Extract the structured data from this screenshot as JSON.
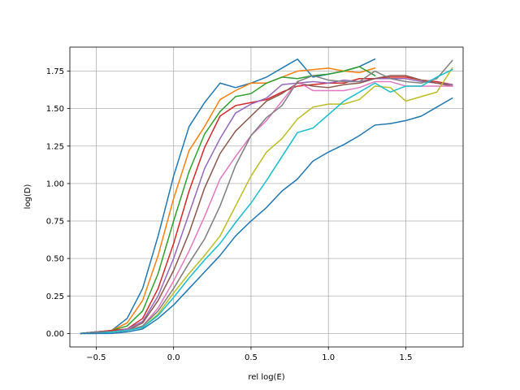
{
  "chart_data": {
    "type": "line",
    "title": "",
    "xlabel": "rel log(E)",
    "ylabel": "log(D)",
    "xlim": [
      -0.67,
      1.87
    ],
    "ylim": [
      -0.09,
      1.91
    ],
    "xticks": [
      -0.5,
      0.0,
      0.5,
      1.0,
      1.5
    ],
    "xtick_labels": [
      "−0.5",
      "0.0",
      "0.5",
      "1.0",
      "1.5"
    ],
    "yticks": [
      0.0,
      0.25,
      0.5,
      0.75,
      1.0,
      1.25,
      1.5,
      1.75
    ],
    "ytick_labels": [
      "0.00",
      "0.25",
      "0.50",
      "0.75",
      "1.00",
      "1.25",
      "1.50",
      "1.75"
    ],
    "grid": true,
    "legend": "none",
    "series": [
      {
        "color": "#1f77b4",
        "x": [
          -0.6,
          -0.5,
          -0.4,
          -0.3,
          -0.2,
          -0.1,
          0.0,
          0.1,
          0.2,
          0.3,
          0.4,
          0.5,
          0.6,
          0.7,
          0.8,
          0.9,
          1.0,
          1.1,
          1.2,
          1.3
        ],
        "y": [
          0.0,
          0.01,
          0.02,
          0.1,
          0.3,
          0.65,
          1.05,
          1.38,
          1.54,
          1.67,
          1.64,
          1.67,
          1.71,
          1.77,
          1.83,
          1.71,
          1.73,
          1.75,
          1.78,
          1.83
        ]
      },
      {
        "color": "#ff7f0e",
        "x": [
          -0.6,
          -0.5,
          -0.4,
          -0.3,
          -0.2,
          -0.1,
          0.0,
          0.1,
          0.2,
          0.3,
          0.4,
          0.5,
          0.6,
          0.7,
          0.8,
          0.9,
          1.0,
          1.1,
          1.2,
          1.3
        ],
        "y": [
          0.0,
          0.01,
          0.02,
          0.07,
          0.22,
          0.52,
          0.9,
          1.22,
          1.38,
          1.56,
          1.62,
          1.67,
          1.67,
          1.71,
          1.75,
          1.76,
          1.77,
          1.75,
          1.74,
          1.77
        ]
      },
      {
        "color": "#2ca02c",
        "x": [
          -0.6,
          -0.5,
          -0.4,
          -0.3,
          -0.2,
          -0.1,
          0.0,
          0.1,
          0.2,
          0.3,
          0.4,
          0.5,
          0.6,
          0.7,
          0.8,
          0.9,
          1.0,
          1.1,
          1.2,
          1.3
        ],
        "y": [
          0.0,
          0.01,
          0.02,
          0.05,
          0.15,
          0.4,
          0.75,
          1.08,
          1.33,
          1.48,
          1.58,
          1.6,
          1.67,
          1.71,
          1.7,
          1.72,
          1.73,
          1.75,
          1.78,
          1.72
        ]
      },
      {
        "color": "#d62728",
        "x": [
          -0.6,
          -0.5,
          -0.4,
          -0.3,
          -0.2,
          -0.1,
          0.0,
          0.1,
          0.2,
          0.3,
          0.4,
          0.5,
          0.6,
          0.7,
          0.8,
          0.9,
          1.0,
          1.1,
          1.2,
          1.3,
          1.4,
          1.5,
          1.6,
          1.7,
          1.8
        ],
        "y": [
          0.0,
          0.01,
          0.02,
          0.03,
          0.1,
          0.3,
          0.6,
          0.95,
          1.24,
          1.45,
          1.52,
          1.54,
          1.56,
          1.61,
          1.65,
          1.66,
          1.67,
          1.67,
          1.7,
          1.7,
          1.71,
          1.71,
          1.69,
          1.68,
          1.66
        ]
      },
      {
        "color": "#9467bd",
        "x": [
          -0.6,
          -0.5,
          -0.4,
          -0.3,
          -0.2,
          -0.1,
          0.0,
          0.1,
          0.2,
          0.3,
          0.4,
          0.5,
          0.6,
          0.7,
          0.8,
          0.9,
          1.0,
          1.1,
          1.2,
          1.3,
          1.4,
          1.5,
          1.6,
          1.7,
          1.8
        ],
        "y": [
          0.0,
          0.01,
          0.01,
          0.03,
          0.08,
          0.25,
          0.5,
          0.8,
          1.1,
          1.3,
          1.47,
          1.53,
          1.57,
          1.66,
          1.67,
          1.68,
          1.67,
          1.69,
          1.68,
          1.7,
          1.7,
          1.7,
          1.68,
          1.67,
          1.66
        ]
      },
      {
        "color": "#8c564b",
        "x": [
          -0.6,
          -0.5,
          -0.4,
          -0.3,
          -0.2,
          -0.1,
          0.0,
          0.1,
          0.2,
          0.3,
          0.4,
          0.5,
          0.6,
          0.7,
          0.8,
          0.9,
          1.0,
          1.1,
          1.2,
          1.3,
          1.4,
          1.5,
          1.6,
          1.7,
          1.8
        ],
        "y": [
          0.0,
          0.01,
          0.01,
          0.02,
          0.07,
          0.22,
          0.42,
          0.67,
          0.97,
          1.2,
          1.35,
          1.45,
          1.55,
          1.6,
          1.67,
          1.65,
          1.64,
          1.66,
          1.67,
          1.7,
          1.72,
          1.72,
          1.69,
          1.67,
          1.65
        ]
      },
      {
        "color": "#e377c2",
        "x": [
          -0.6,
          -0.5,
          -0.4,
          -0.3,
          -0.2,
          -0.1,
          0.0,
          0.1,
          0.2,
          0.3,
          0.4,
          0.5,
          0.6,
          0.7,
          0.8,
          0.9,
          1.0,
          1.1,
          1.2,
          1.3,
          1.4,
          1.5,
          1.6,
          1.7,
          1.8
        ],
        "y": [
          0.0,
          0.01,
          0.01,
          0.02,
          0.05,
          0.17,
          0.35,
          0.55,
          0.78,
          1.03,
          1.18,
          1.32,
          1.42,
          1.55,
          1.68,
          1.62,
          1.62,
          1.62,
          1.64,
          1.68,
          1.68,
          1.65,
          1.65,
          1.65,
          1.65
        ]
      },
      {
        "color": "#7f7f7f",
        "x": [
          -0.6,
          -0.5,
          -0.4,
          -0.3,
          -0.2,
          -0.1,
          0.0,
          0.1,
          0.2,
          0.3,
          0.4,
          0.5,
          0.6,
          0.7,
          0.8,
          0.9,
          1.0,
          1.1,
          1.2,
          1.3,
          1.4,
          1.5,
          1.6,
          1.7,
          1.8
        ],
        "y": [
          0.0,
          0.01,
          0.01,
          0.02,
          0.05,
          0.15,
          0.3,
          0.47,
          0.63,
          0.85,
          1.12,
          1.32,
          1.44,
          1.52,
          1.68,
          1.72,
          1.69,
          1.68,
          1.68,
          1.75,
          1.7,
          1.68,
          1.67,
          1.7,
          1.82
        ]
      },
      {
        "color": "#bcbd22",
        "x": [
          -0.6,
          -0.5,
          -0.4,
          -0.3,
          -0.2,
          -0.1,
          0.0,
          0.1,
          0.2,
          0.3,
          0.4,
          0.5,
          0.6,
          0.7,
          0.8,
          0.9,
          1.0,
          1.1,
          1.2,
          1.3,
          1.4,
          1.5,
          1.6,
          1.7,
          1.8
        ],
        "y": [
          0.0,
          0.0,
          0.01,
          0.02,
          0.04,
          0.13,
          0.27,
          0.4,
          0.52,
          0.65,
          0.85,
          1.05,
          1.21,
          1.3,
          1.43,
          1.51,
          1.53,
          1.53,
          1.56,
          1.65,
          1.64,
          1.55,
          1.58,
          1.61,
          1.77
        ]
      },
      {
        "color": "#17becf",
        "x": [
          -0.6,
          -0.5,
          -0.4,
          -0.3,
          -0.2,
          -0.1,
          0.0,
          0.1,
          0.2,
          0.3,
          0.4,
          0.5,
          0.6,
          0.7,
          0.8,
          0.9,
          1.0,
          1.1,
          1.2,
          1.3,
          1.4,
          1.5,
          1.6,
          1.7,
          1.8
        ],
        "y": [
          0.0,
          0.0,
          0.01,
          0.02,
          0.04,
          0.12,
          0.24,
          0.37,
          0.49,
          0.6,
          0.74,
          0.87,
          1.02,
          1.18,
          1.34,
          1.37,
          1.46,
          1.55,
          1.61,
          1.67,
          1.61,
          1.65,
          1.65,
          1.71,
          1.76
        ]
      },
      {
        "color": "#1f77b4",
        "x": [
          -0.6,
          -0.5,
          -0.4,
          -0.3,
          -0.2,
          -0.1,
          0.0,
          0.1,
          0.2,
          0.3,
          0.4,
          0.5,
          0.6,
          0.7,
          0.8,
          0.9,
          1.0,
          1.1,
          1.2,
          1.3,
          1.4,
          1.5,
          1.6,
          1.7,
          1.8
        ],
        "y": [
          0.0,
          0.0,
          0.0,
          0.01,
          0.03,
          0.1,
          0.19,
          0.3,
          0.41,
          0.52,
          0.65,
          0.75,
          0.84,
          0.95,
          1.03,
          1.15,
          1.21,
          1.26,
          1.32,
          1.39,
          1.4,
          1.42,
          1.45,
          1.51,
          1.57
        ]
      }
    ]
  }
}
